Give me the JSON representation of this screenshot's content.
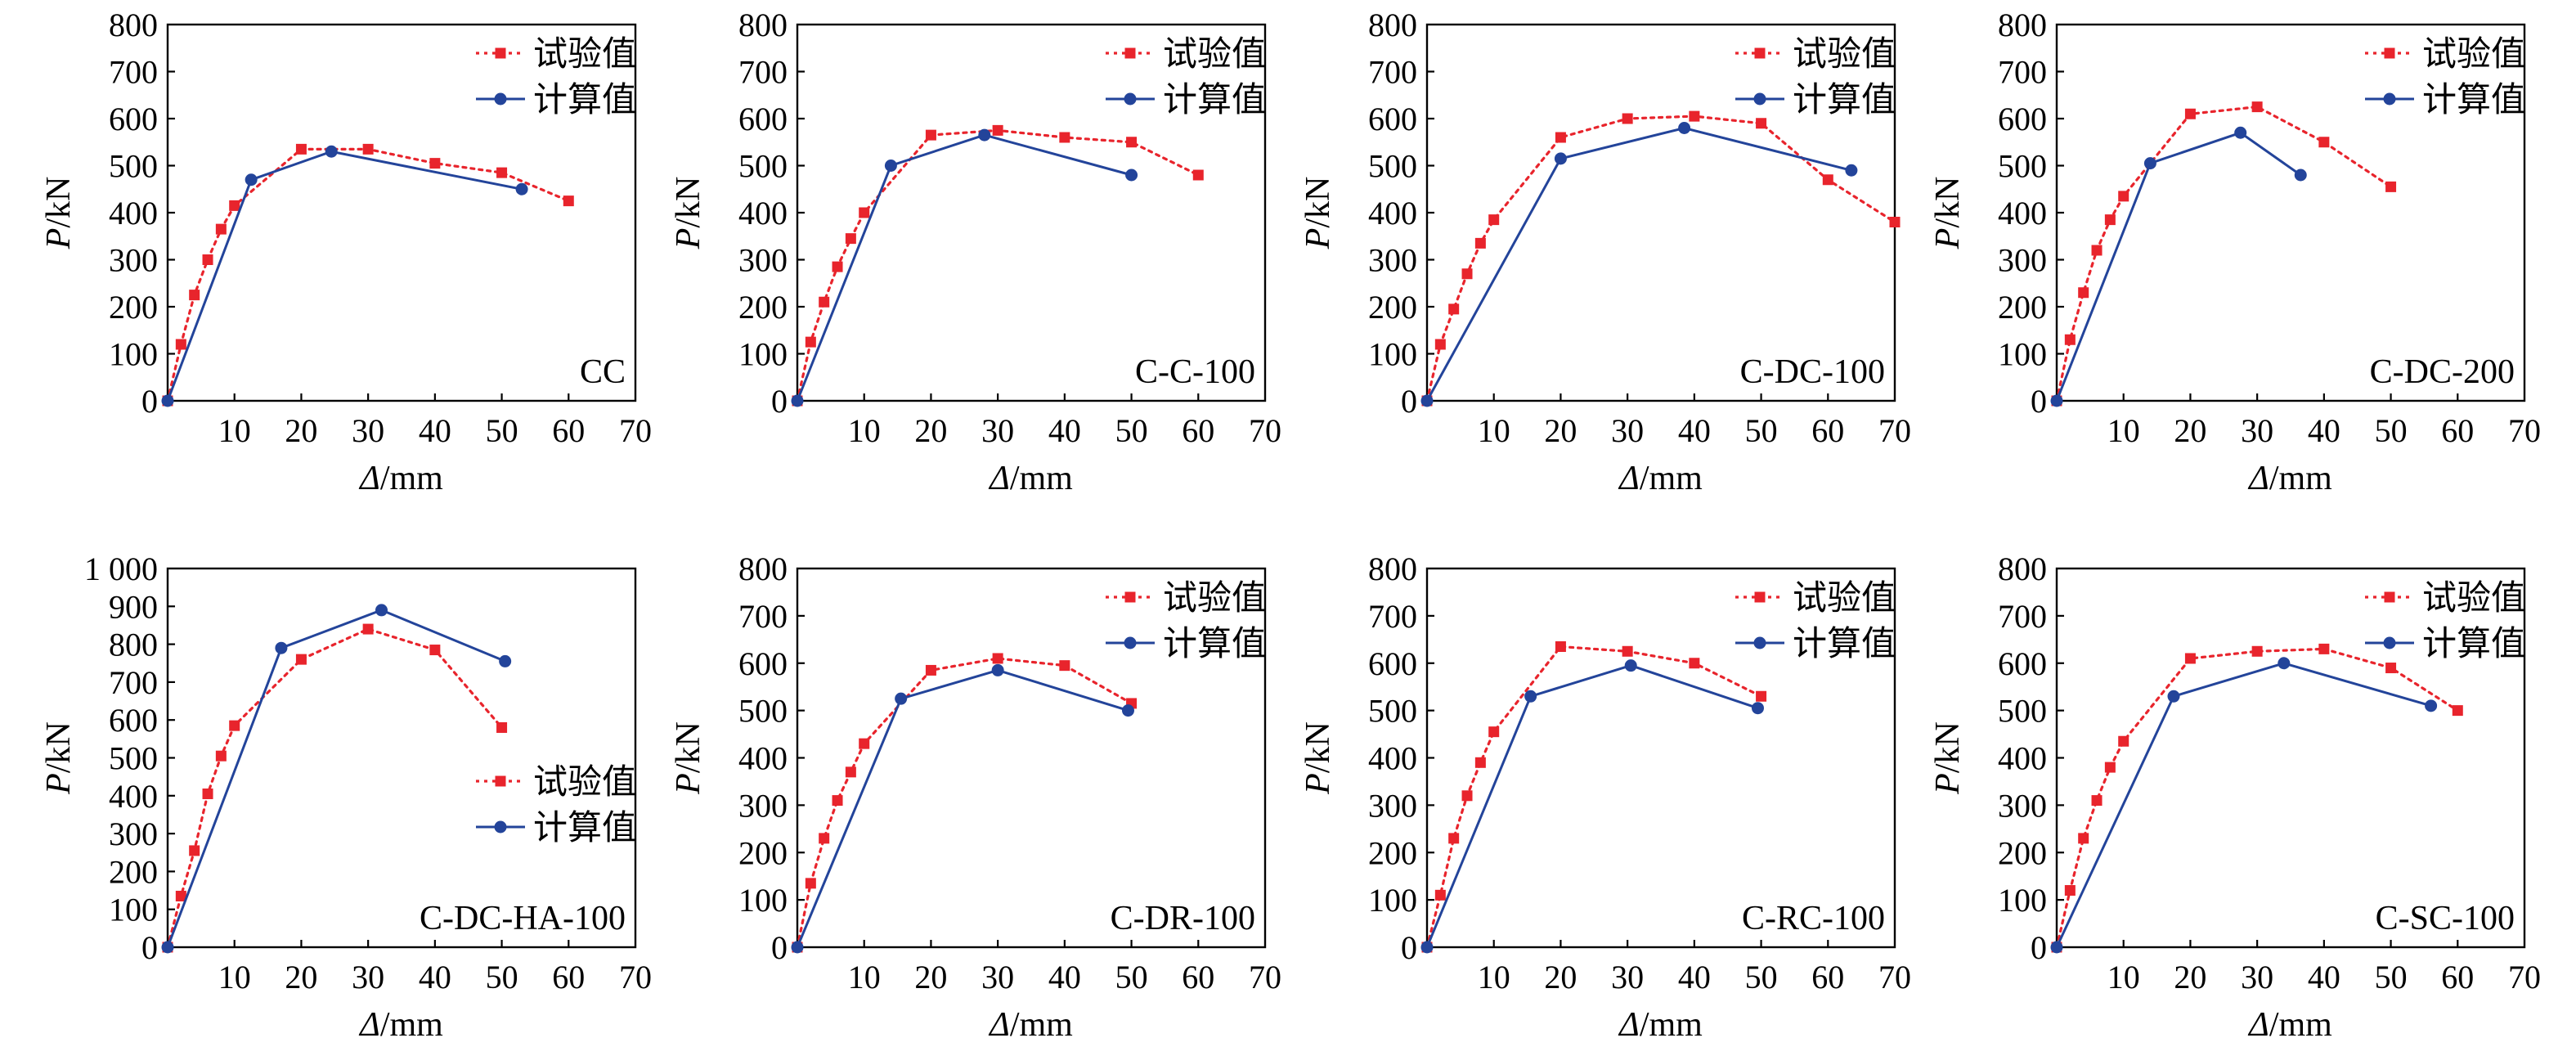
{
  "legend": {
    "exp_label": "试验值",
    "calc_label": "计算值"
  },
  "colors": {
    "exp": "#e8242c",
    "calc": "#23449a",
    "axis": "#000000"
  },
  "axes": {
    "xlabel_symbol": "Δ",
    "xlabel_unit": "/mm",
    "ylabel_symbol": "P",
    "ylabel_unit": "/kN"
  },
  "chart_data": [
    {
      "type": "line",
      "label": "CC",
      "legend_position": "top-right",
      "xlim": [
        0,
        70
      ],
      "ylim": [
        0,
        800
      ],
      "xticks": [
        "10",
        "20",
        "30",
        "40",
        "50",
        "60",
        "70"
      ],
      "yticks": [
        "0",
        "100",
        "200",
        "300",
        "400",
        "500",
        "600",
        "700",
        "800"
      ],
      "series": [
        {
          "name": "试验值",
          "x": [
            0,
            2,
            4,
            6,
            8,
            10,
            20,
            30,
            40,
            50,
            60
          ],
          "y": [
            0,
            120,
            225,
            300,
            365,
            415,
            535,
            535,
            505,
            485,
            425
          ]
        },
        {
          "name": "计算值",
          "x": [
            0,
            12.5,
            24.5,
            53
          ],
          "y": [
            0,
            470,
            530,
            450
          ]
        }
      ]
    },
    {
      "type": "line",
      "label": "C-C-100",
      "legend_position": "top-right",
      "xlim": [
        0,
        70
      ],
      "ylim": [
        0,
        800
      ],
      "xticks": [
        "10",
        "20",
        "30",
        "40",
        "50",
        "60",
        "70"
      ],
      "yticks": [
        "0",
        "100",
        "200",
        "300",
        "400",
        "500",
        "600",
        "700",
        "800"
      ],
      "series": [
        {
          "name": "试验值",
          "x": [
            0,
            2,
            4,
            6,
            8,
            10,
            20,
            30,
            40,
            50,
            60
          ],
          "y": [
            0,
            125,
            210,
            285,
            345,
            400,
            565,
            575,
            560,
            550,
            480
          ]
        },
        {
          "name": "计算值",
          "x": [
            0,
            14,
            28,
            50
          ],
          "y": [
            0,
            500,
            565,
            480
          ]
        }
      ]
    },
    {
      "type": "line",
      "label": "C-DC-100",
      "legend_position": "top-right",
      "xlim": [
        0,
        70
      ],
      "ylim": [
        0,
        800
      ],
      "xticks": [
        "10",
        "20",
        "30",
        "40",
        "50",
        "60",
        "70"
      ],
      "yticks": [
        "0",
        "100",
        "200",
        "300",
        "400",
        "500",
        "600",
        "700",
        "800"
      ],
      "series": [
        {
          "name": "试验值",
          "x": [
            0,
            2,
            4,
            6,
            8,
            10,
            20,
            30,
            40,
            50,
            60,
            70
          ],
          "y": [
            0,
            120,
            195,
            270,
            335,
            385,
            560,
            600,
            605,
            590,
            470,
            380
          ]
        },
        {
          "name": "计算值",
          "x": [
            0,
            20,
            38.5,
            63.5
          ],
          "y": [
            0,
            515,
            580,
            490
          ]
        }
      ]
    },
    {
      "type": "line",
      "label": "C-DC-200",
      "legend_position": "top-right",
      "xlim": [
        0,
        70
      ],
      "ylim": [
        0,
        800
      ],
      "xticks": [
        "10",
        "20",
        "30",
        "40",
        "50",
        "60",
        "70"
      ],
      "yticks": [
        "0",
        "100",
        "200",
        "300",
        "400",
        "500",
        "600",
        "700",
        "800"
      ],
      "series": [
        {
          "name": "试验值",
          "x": [
            0,
            2,
            4,
            6,
            8,
            10,
            20,
            30,
            40,
            50
          ],
          "y": [
            0,
            130,
            230,
            320,
            385,
            435,
            610,
            625,
            550,
            455
          ]
        },
        {
          "name": "计算值",
          "x": [
            0,
            14,
            27.5,
            36.5
          ],
          "y": [
            0,
            505,
            570,
            480
          ]
        }
      ]
    },
    {
      "type": "line",
      "label": "C-DC-HA-100",
      "legend_position": "center-right",
      "xlim": [
        0,
        70
      ],
      "ylim": [
        0,
        1000
      ],
      "xticks": [
        "10",
        "20",
        "30",
        "40",
        "50",
        "60",
        "70"
      ],
      "yticks": [
        "0",
        "100",
        "200",
        "300",
        "400",
        "500",
        "600",
        "700",
        "800",
        "900",
        "1 000"
      ],
      "series": [
        {
          "name": "试验值",
          "x": [
            0,
            2,
            4,
            6,
            8,
            10,
            20,
            30,
            40,
            50
          ],
          "y": [
            0,
            135,
            255,
            405,
            505,
            585,
            760,
            840,
            785,
            580
          ]
        },
        {
          "name": "计算值",
          "x": [
            0,
            17,
            32,
            50.5
          ],
          "y": [
            0,
            790,
            890,
            755
          ]
        }
      ]
    },
    {
      "type": "line",
      "label": "C-DR-100",
      "legend_position": "top-right",
      "xlim": [
        0,
        70
      ],
      "ylim": [
        0,
        800
      ],
      "xticks": [
        "10",
        "20",
        "30",
        "40",
        "50",
        "60",
        "70"
      ],
      "yticks": [
        "0",
        "100",
        "200",
        "300",
        "400",
        "500",
        "600",
        "700",
        "800"
      ],
      "series": [
        {
          "name": "试验值",
          "x": [
            0,
            2,
            4,
            6,
            8,
            10,
            20,
            30,
            40,
            50
          ],
          "y": [
            0,
            135,
            230,
            310,
            370,
            430,
            585,
            610,
            595,
            515
          ]
        },
        {
          "name": "计算值",
          "x": [
            0,
            15.5,
            30,
            49.5
          ],
          "y": [
            0,
            525,
            585,
            500
          ]
        }
      ]
    },
    {
      "type": "line",
      "label": "C-RC-100",
      "legend_position": "top-right",
      "xlim": [
        0,
        70
      ],
      "ylim": [
        0,
        800
      ],
      "xticks": [
        "10",
        "20",
        "30",
        "40",
        "50",
        "60",
        "70"
      ],
      "yticks": [
        "0",
        "100",
        "200",
        "300",
        "400",
        "500",
        "600",
        "700",
        "800"
      ],
      "series": [
        {
          "name": "试验值",
          "x": [
            0,
            2,
            4,
            6,
            8,
            10,
            20,
            30,
            40,
            50
          ],
          "y": [
            0,
            110,
            230,
            320,
            390,
            455,
            635,
            625,
            600,
            530
          ]
        },
        {
          "name": "计算值",
          "x": [
            0,
            15.5,
            30.5,
            49.5
          ],
          "y": [
            0,
            530,
            595,
            505
          ]
        }
      ]
    },
    {
      "type": "line",
      "label": "C-SC-100",
      "legend_position": "top-right",
      "xlim": [
        0,
        70
      ],
      "ylim": [
        0,
        800
      ],
      "xticks": [
        "10",
        "20",
        "30",
        "40",
        "50",
        "60",
        "70"
      ],
      "yticks": [
        "0",
        "100",
        "200",
        "300",
        "400",
        "500",
        "600",
        "700",
        "800"
      ],
      "series": [
        {
          "name": "试验值",
          "x": [
            0,
            2,
            4,
            6,
            8,
            10,
            20,
            30,
            40,
            50,
            60
          ],
          "y": [
            0,
            120,
            230,
            310,
            380,
            435,
            610,
            625,
            630,
            590,
            500
          ]
        },
        {
          "name": "计算值",
          "x": [
            0,
            17.5,
            34,
            56
          ],
          "y": [
            0,
            530,
            600,
            510
          ]
        }
      ]
    }
  ]
}
